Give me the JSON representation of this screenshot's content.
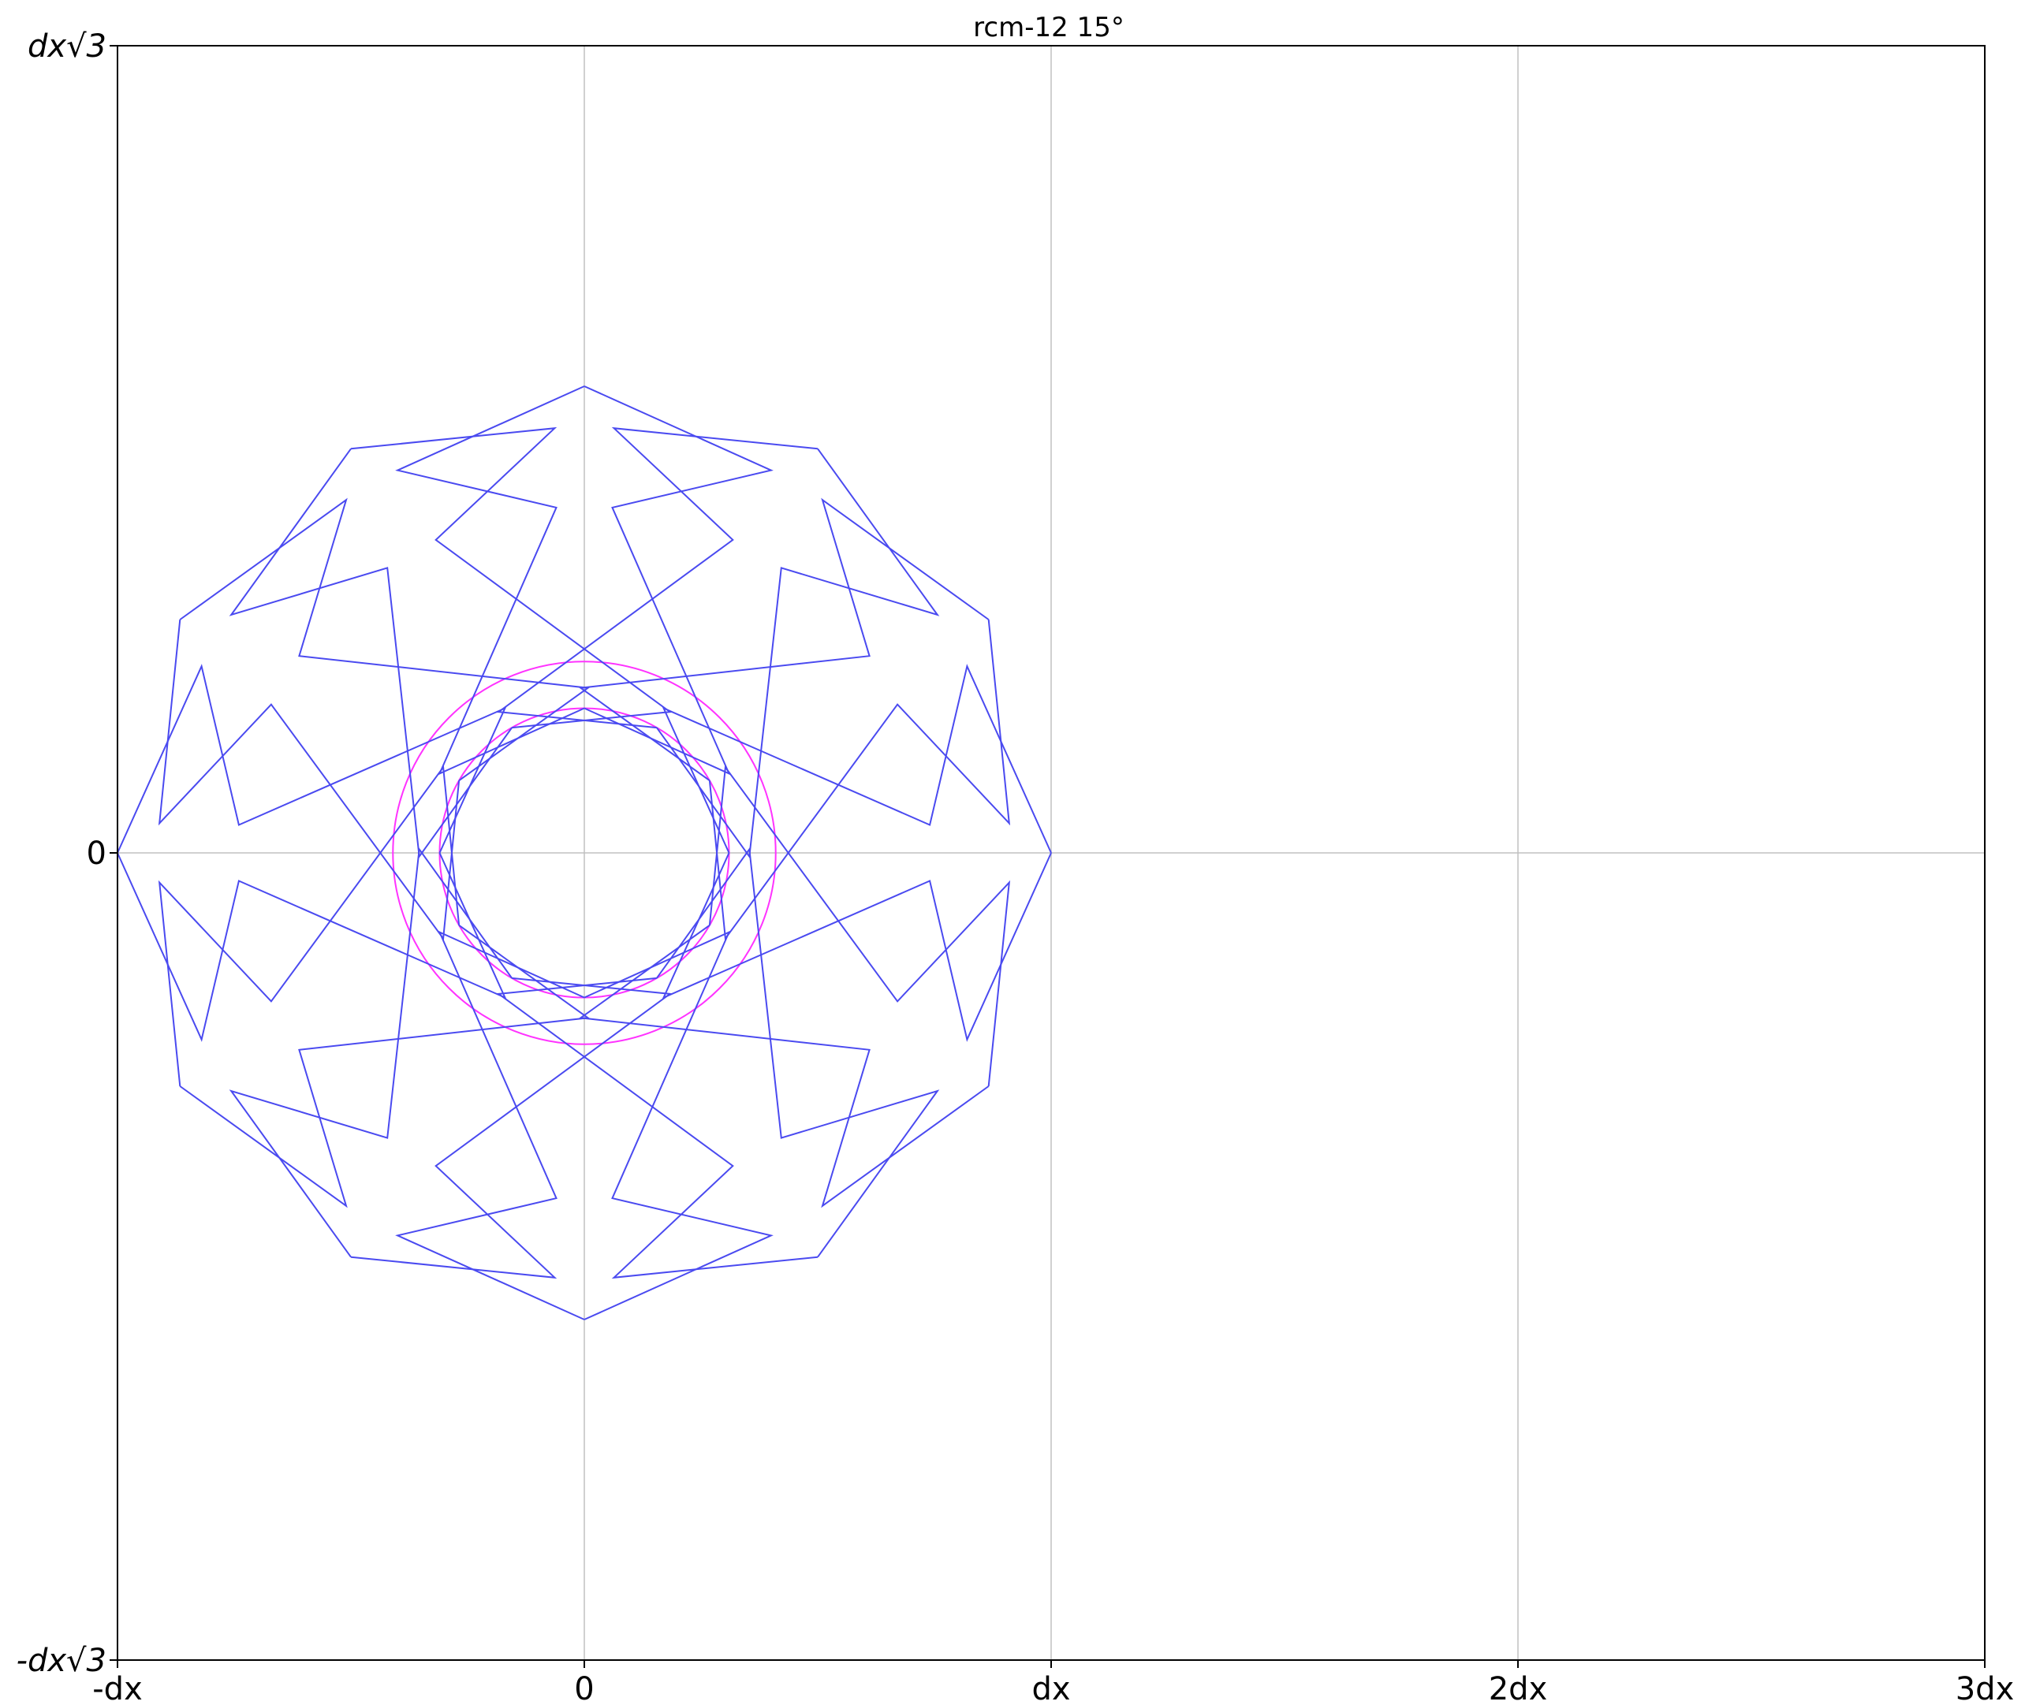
{
  "figure": {
    "title": "rcm-12 15°"
  },
  "colors": {
    "star": "#4a4af0",
    "circle": "#ff33ff",
    "grid": "#c0c0c0",
    "frame": "#000000"
  },
  "axes": {
    "x_range_dx": [
      -1,
      3
    ],
    "y_range_dx_sqrt3": [
      -1,
      1
    ],
    "grid": true,
    "x_ticks": [
      {
        "value": -1,
        "label": "-dx"
      },
      {
        "value": 0,
        "label": "0"
      },
      {
        "value": 1,
        "label": "dx"
      },
      {
        "value": 2,
        "label": "2dx"
      },
      {
        "value": 3,
        "label": "3dx"
      }
    ],
    "y_ticks": [
      {
        "value": 1,
        "label": "dx√3"
      },
      {
        "value": 0,
        "label": "0"
      },
      {
        "value": -1,
        "label": "-dx√3"
      }
    ]
  },
  "pattern": {
    "type": "rosette",
    "symmetry": 12,
    "center": [
      0,
      0
    ],
    "outer_radius": 1.0,
    "star_points": [
      [
        1.0,
        0.0
      ],
      [
        0.82,
        0.4
      ],
      [
        0.74,
        0.06
      ],
      [
        0.17,
        0.31
      ],
      [
        0.31,
        0.0
      ]
    ],
    "inner_circle_radius": 0.31,
    "outer_circle_radius": 0.41
  }
}
